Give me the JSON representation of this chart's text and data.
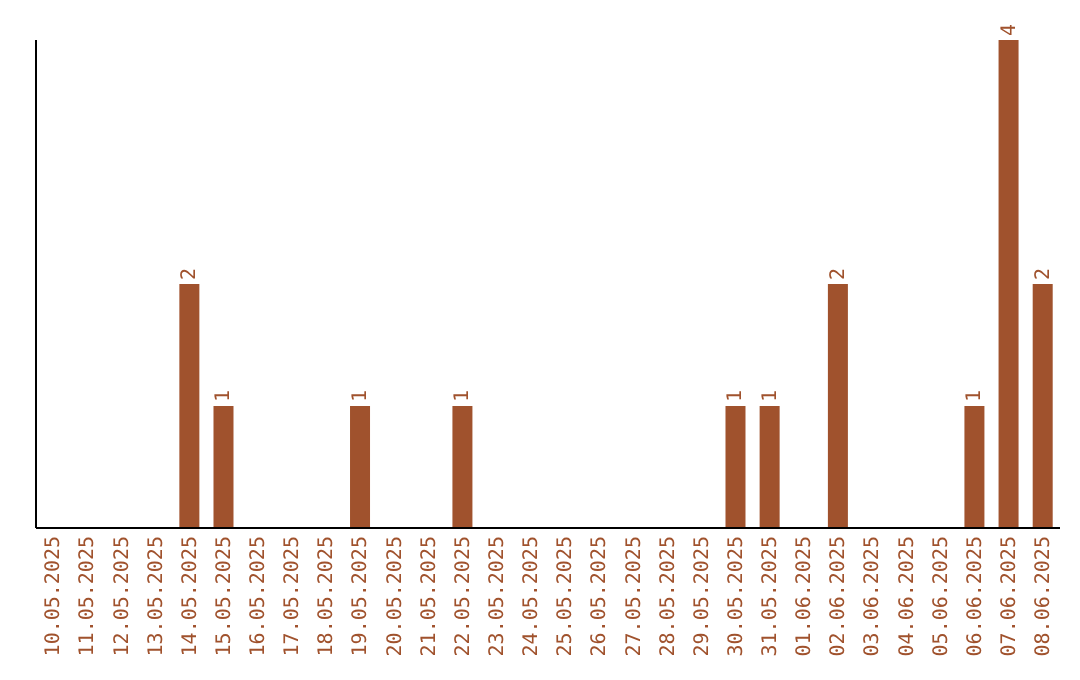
{
  "chart_data": {
    "type": "bar",
    "categories": [
      "10.05.2025",
      "11.05.2025",
      "12.05.2025",
      "13.05.2025",
      "14.05.2025",
      "15.05.2025",
      "16.05.2025",
      "17.05.2025",
      "18.05.2025",
      "19.05.2025",
      "20.05.2025",
      "21.05.2025",
      "22.05.2025",
      "23.05.2025",
      "24.05.2025",
      "25.05.2025",
      "26.05.2025",
      "27.05.2025",
      "28.05.2025",
      "29.05.2025",
      "30.05.2025",
      "31.05.2025",
      "01.06.2025",
      "02.06.2025",
      "03.06.2025",
      "04.06.2025",
      "05.06.2025",
      "06.06.2025",
      "07.06.2025",
      "08.06.2025"
    ],
    "values": [
      0,
      0,
      0,
      0,
      2,
      1,
      0,
      0,
      0,
      1,
      0,
      0,
      1,
      0,
      0,
      0,
      0,
      0,
      0,
      0,
      1,
      1,
      0,
      2,
      0,
      0,
      0,
      1,
      4,
      2
    ],
    "value_labels": [
      null,
      null,
      null,
      null,
      "2",
      "1",
      null,
      null,
      null,
      "1",
      null,
      null,
      "1",
      null,
      null,
      null,
      null,
      null,
      null,
      null,
      "1",
      "1",
      null,
      "2",
      null,
      null,
      null,
      "1",
      "4",
      "2"
    ],
    "color": "#a0522d",
    "tick_labels": "x",
    "grid": false,
    "legend": false
  }
}
